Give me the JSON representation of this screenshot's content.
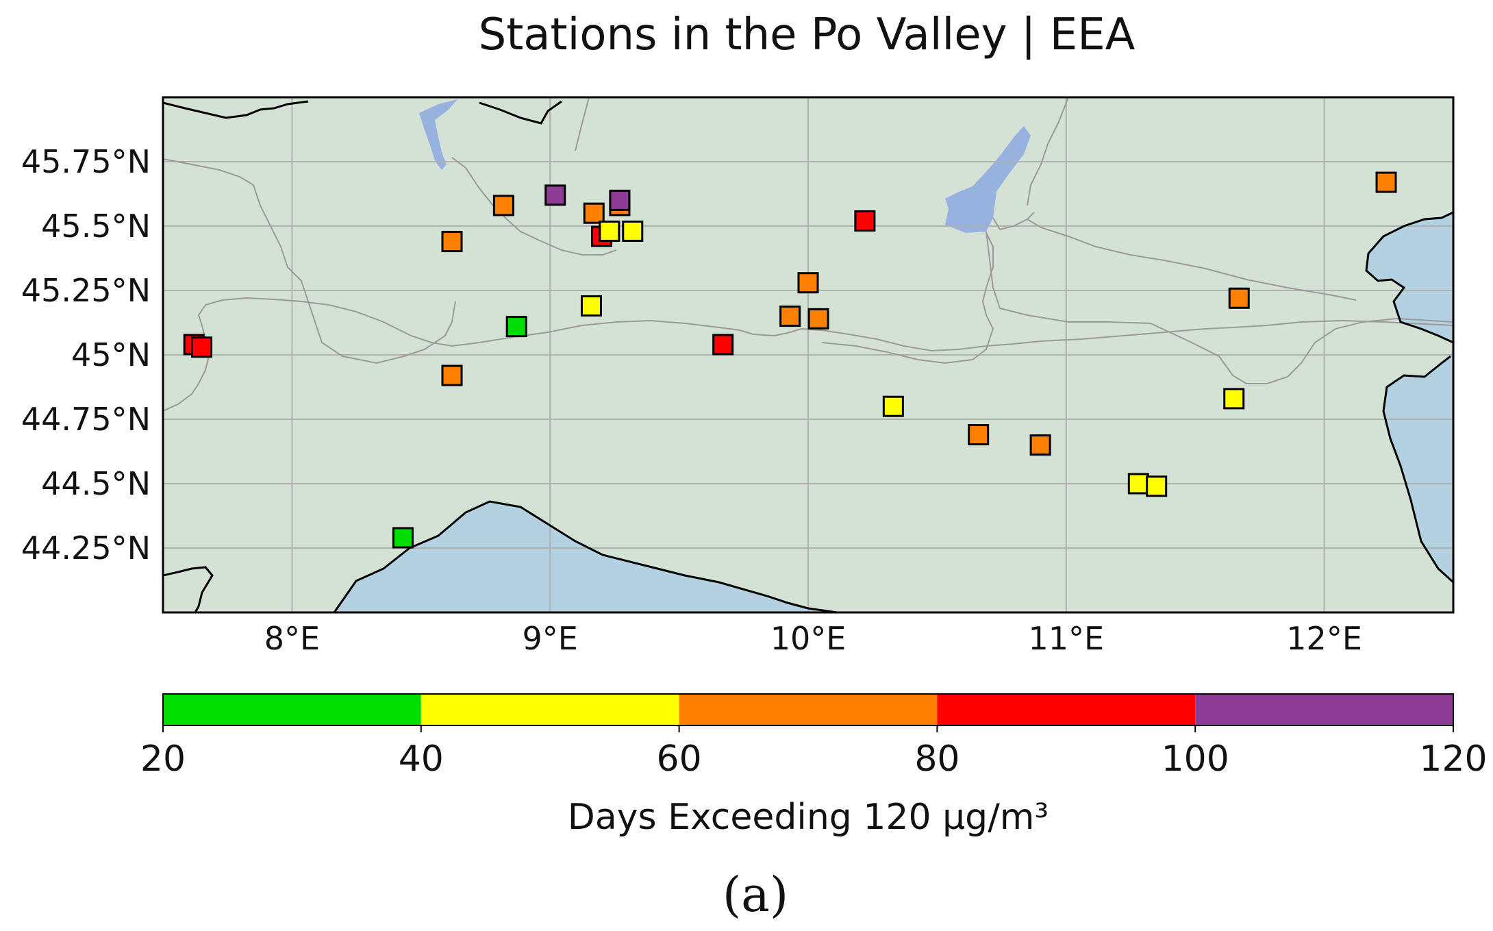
{
  "title": "Stations in the Po Valley | EEA",
  "panel_label": "(a)",
  "colors": {
    "land": "#d4e2d6",
    "sea": "#b3d1e0",
    "lake": "#98b2e0",
    "grid": "#b0b0b0",
    "coast": "#000000",
    "border": "#9a9a9a"
  },
  "map": {
    "lon_range": [
      7.5,
      12.5
    ],
    "lat_range": [
      44.0,
      46.0
    ],
    "lon_ticks": [
      {
        "value": 8,
        "label": "8°E"
      },
      {
        "value": 9,
        "label": "9°E"
      },
      {
        "value": 10,
        "label": "10°E"
      },
      {
        "value": 11,
        "label": "11°E"
      },
      {
        "value": 12,
        "label": "12°E"
      }
    ],
    "lat_ticks": [
      {
        "value": 45.75,
        "label": "45.75°N"
      },
      {
        "value": 45.5,
        "label": "45.5°N"
      },
      {
        "value": 45.25,
        "label": "45.25°N"
      },
      {
        "value": 45.0,
        "label": "45°N"
      },
      {
        "value": 44.75,
        "label": "44.75°N"
      },
      {
        "value": 44.5,
        "label": "44.5°N"
      },
      {
        "value": 44.25,
        "label": "44.25°N"
      }
    ],
    "grid": true
  },
  "chart_data": {
    "type": "scatter",
    "title": "Stations in the Po Valley | EEA",
    "xlabel": "",
    "ylabel": "",
    "xlim": [
      7.5,
      12.5
    ],
    "ylim": [
      44.0,
      46.0
    ],
    "colorbar": {
      "label": "Days Exceeding 120 μg/m³",
      "range": [
        20,
        120
      ],
      "ticks": [
        20,
        40,
        60,
        80,
        100,
        120
      ],
      "bins": [
        {
          "from": 20,
          "to": 40,
          "color": "#00dd00"
        },
        {
          "from": 40,
          "to": 60,
          "color": "#ffff00"
        },
        {
          "from": 60,
          "to": 80,
          "color": "#ff7f00"
        },
        {
          "from": 80,
          "to": 100,
          "color": "#ff0000"
        },
        {
          "from": 100,
          "to": 120,
          "color": "#8e3c95"
        }
      ]
    },
    "points": [
      {
        "lon": 7.62,
        "lat": 45.04,
        "days": 90
      },
      {
        "lon": 7.65,
        "lat": 45.03,
        "days": 90
      },
      {
        "lon": 8.62,
        "lat": 45.44,
        "days": 70
      },
      {
        "lon": 8.62,
        "lat": 44.92,
        "days": 70
      },
      {
        "lon": 8.43,
        "lat": 44.29,
        "days": 30
      },
      {
        "lon": 8.82,
        "lat": 45.58,
        "days": 70
      },
      {
        "lon": 8.87,
        "lat": 45.11,
        "days": 30
      },
      {
        "lon": 9.02,
        "lat": 45.62,
        "days": 110
      },
      {
        "lon": 9.17,
        "lat": 45.55,
        "days": 70
      },
      {
        "lon": 9.2,
        "lat": 45.46,
        "days": 90
      },
      {
        "lon": 9.23,
        "lat": 45.48,
        "days": 50
      },
      {
        "lon": 9.27,
        "lat": 45.58,
        "days": 70
      },
      {
        "lon": 9.27,
        "lat": 45.6,
        "days": 110
      },
      {
        "lon": 9.32,
        "lat": 45.48,
        "days": 50
      },
      {
        "lon": 9.16,
        "lat": 45.19,
        "days": 50
      },
      {
        "lon": 9.67,
        "lat": 45.04,
        "days": 90
      },
      {
        "lon": 9.93,
        "lat": 45.15,
        "days": 70
      },
      {
        "lon": 10.0,
        "lat": 45.28,
        "days": 70
      },
      {
        "lon": 10.04,
        "lat": 45.14,
        "days": 70
      },
      {
        "lon": 10.22,
        "lat": 45.52,
        "days": 90
      },
      {
        "lon": 10.33,
        "lat": 44.8,
        "days": 50
      },
      {
        "lon": 10.66,
        "lat": 44.69,
        "days": 70
      },
      {
        "lon": 10.9,
        "lat": 44.65,
        "days": 70
      },
      {
        "lon": 11.28,
        "lat": 44.5,
        "days": 50
      },
      {
        "lon": 11.35,
        "lat": 44.49,
        "days": 50
      },
      {
        "lon": 11.65,
        "lat": 44.83,
        "days": 50
      },
      {
        "lon": 11.67,
        "lat": 45.22,
        "days": 70
      },
      {
        "lon": 12.24,
        "lat": 45.67,
        "days": 70
      }
    ]
  }
}
